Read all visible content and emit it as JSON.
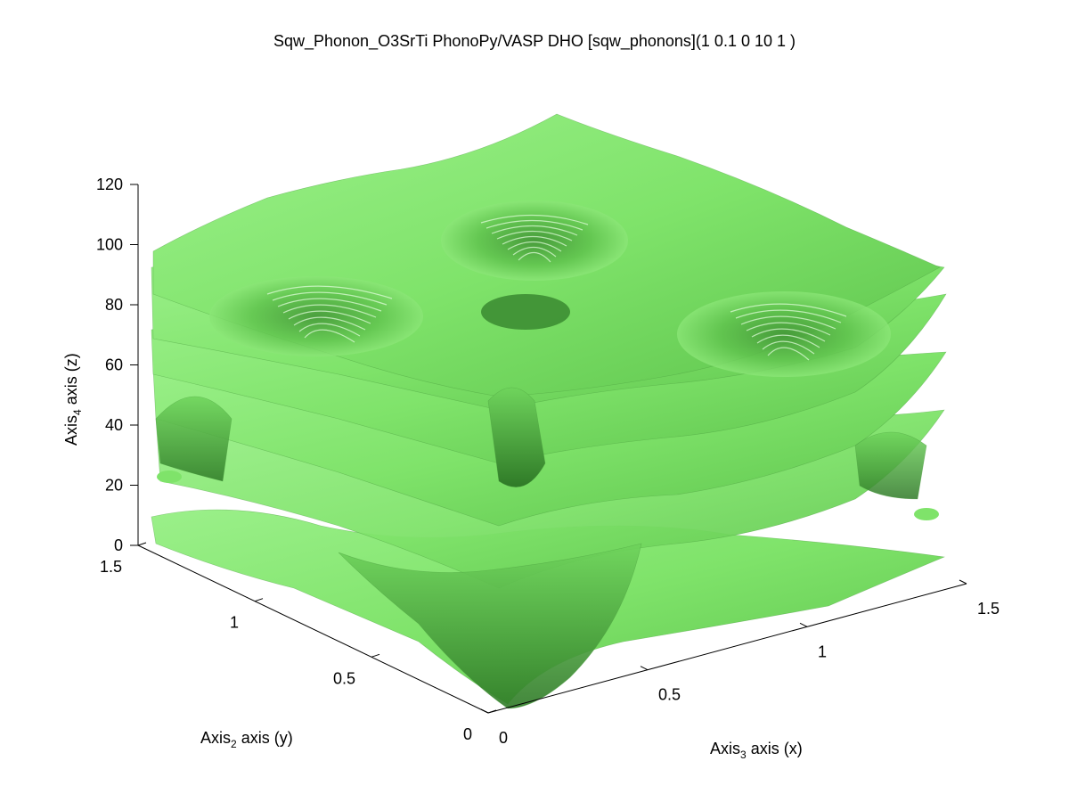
{
  "figure": {
    "title": "Sqw_Phonon_O3SrTi PhonoPy/VASP DHO [sqw_phonons](1 0.1 0 10 1 )"
  },
  "chart_data": {
    "type": "surface3d",
    "title": "Sqw_Phonon_O3SrTi PhonoPy/VASP DHO [sqw_phonons](1 0.1 0 10 1 )",
    "xlabel": {
      "pre": "Axis",
      "sub": "3",
      "post": " axis (x)"
    },
    "ylabel": {
      "pre": "Axis",
      "sub": "2",
      "post": " axis (y)"
    },
    "zlabel": {
      "pre": "Axis",
      "sub": "4",
      "post": " axis (z)"
    },
    "xlim": [
      0,
      1.5
    ],
    "ylim": [
      0,
      1.5
    ],
    "zlim": [
      0,
      120
    ],
    "x_ticks": [
      "0",
      "0.5",
      "1",
      "1.5"
    ],
    "y_ticks": [
      "0",
      "0.5",
      "1",
      "1.5"
    ],
    "z_ticks": [
      "0",
      "20",
      "40",
      "60",
      "80",
      "100",
      "120"
    ],
    "surface_color": "#7FE36A",
    "grid": false,
    "isosurface_layers_approx_z": [
      5,
      30,
      50,
      70,
      90,
      110
    ]
  }
}
